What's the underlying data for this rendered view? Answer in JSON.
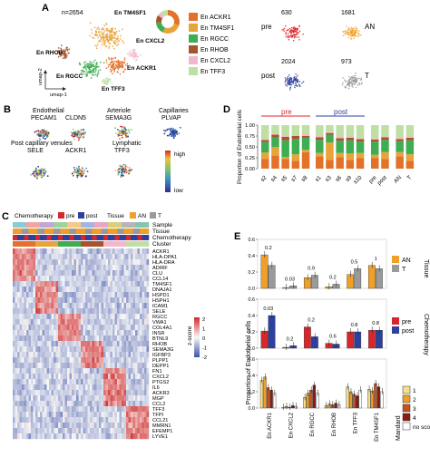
{
  "panels": {
    "A": {
      "letter": "A",
      "n_label": "n=2654",
      "clusters": [
        {
          "label": "En TM4SF1",
          "color": "#e8a33a"
        },
        {
          "label": "En RHOB",
          "color": "#a6542a"
        },
        {
          "label": "En CXCL2",
          "color": "#f4b6cc"
        },
        {
          "label": "En ACKR1",
          "color": "#e2722a"
        },
        {
          "label": "En RGCC",
          "color": "#3fae53"
        },
        {
          "label": "En TFF3",
          "color": "#bfe0a4"
        }
      ],
      "legend": [
        {
          "label": "En ACKR1",
          "color": "#e2722a"
        },
        {
          "label": "En TM4SF1",
          "color": "#e8a33a"
        },
        {
          "label": "En RGCC",
          "color": "#3fae53"
        },
        {
          "label": "En RHOB",
          "color": "#a6542a"
        },
        {
          "label": "En CXCL2",
          "color": "#f4b6cc"
        },
        {
          "label": "En TFF3",
          "color": "#bfe0a4"
        }
      ],
      "axis_x": "umap-1",
      "axis_y": "umap-2",
      "mini_umaps": [
        {
          "group": "pre",
          "count": "630",
          "color": "#d9262b"
        },
        {
          "group": "AN",
          "count": "1681",
          "color": "#f0a028"
        },
        {
          "group": "post",
          "count": "2024",
          "color": "#2e3f9e"
        },
        {
          "group": "T",
          "count": "973",
          "color": "#9a9a9a"
        }
      ]
    },
    "B": {
      "letter": "B",
      "headers": [
        "Endothelial",
        "Arteriole",
        "Capillaries",
        "Post capillary venules",
        "Lymphatic"
      ],
      "genes": [
        "PECAM1",
        "CLDN5",
        "SEMA3G",
        "PLVAP",
        "SELE",
        "ACKR1",
        "TFF3"
      ],
      "color_high": "high",
      "color_low": "low"
    },
    "C": {
      "letter": "C",
      "legend_chemo_title": "Chemotherapy",
      "legend_pre": "pre",
      "legend_post": "post",
      "legend_tissue_title": "Tissue",
      "legend_an": "AN",
      "legend_t": "T",
      "annotation_rows": [
        "Sample",
        "Tissue",
        "Chemotherapy",
        "Cluster"
      ],
      "genes": [
        "ACKR1",
        "HLA-DPA1",
        "HLA-DRA",
        "ADIRF",
        "CLU",
        "CCL14",
        "TM4SF1",
        "DNAJA1",
        "HSPD1",
        "HSPH1",
        "ICAM1",
        "SELE",
        "RGCC",
        "VWA1",
        "COL4A1",
        "INSR",
        "BTNL9",
        "RHOB",
        "SEMA3G",
        "IGFBP3",
        "PLPP1",
        "DEPP1",
        "FN1",
        "CXCL2",
        "PTGS2",
        "IL6",
        "ACKR3",
        "MGP",
        "CCL2",
        "TFF3",
        "TFPI",
        "CCL21",
        "MMRN1",
        "EFEMP1",
        "LYVE1"
      ],
      "scale_label": "z-score",
      "scale_ticks": [
        "2",
        "1",
        "0",
        "-1",
        "-2"
      ]
    },
    "D": {
      "letter": "D",
      "ylabel": "Proportion of Endothelial cells",
      "group_pre": "pre",
      "group_post": "post",
      "yticks": [
        "0.00",
        "0.25",
        "0.50",
        "0.75",
        "1.00"
      ]
    },
    "E": {
      "letter": "E",
      "ylabel": "Proportion of Endothelial cells",
      "tissue_legend": [
        {
          "label": "AN",
          "color": "#f0a028"
        },
        {
          "label": "T",
          "color": "#9a9a9a"
        }
      ],
      "tissue_title": "Tissue",
      "chemo_legend": [
        {
          "label": "pre",
          "color": "#d9262b"
        },
        {
          "label": "post",
          "color": "#2e3f9e"
        }
      ],
      "chemo_title": "Chemotherapy",
      "mandard_title": "Mandard",
      "mandard_legend": [
        {
          "label": "1",
          "color": "#f6e08a"
        },
        {
          "label": "2",
          "color": "#f0a028"
        },
        {
          "label": "3",
          "color": "#c8531c"
        },
        {
          "label": "4",
          "color": "#8a1a14"
        },
        {
          "label": "no score",
          "color": "#ffffff"
        }
      ],
      "yticks_top": [
        "0.0",
        "0.2",
        "0.4",
        "0.6"
      ],
      "yticks_mid": [
        "0.0",
        "0.2",
        "0.4",
        "0.6"
      ],
      "yticks_bot": [
        "0.0",
        "0.2",
        "0.4",
        "0.6"
      ]
    }
  },
  "chart_data": [
    {
      "type": "bar",
      "panel": "D",
      "stacked": true,
      "categories": [
        "s2",
        "s4",
        "s5",
        "s7",
        "s8",
        "s1",
        "s3",
        "s6",
        "s9",
        "s10",
        "pre",
        "post",
        "AN",
        "T"
      ],
      "series": [
        {
          "name": "En ACKR1",
          "values": [
            0.22,
            0.3,
            0.22,
            0.18,
            0.38,
            0.28,
            0.2,
            0.26,
            0.2,
            0.24,
            0.24,
            0.22,
            0.28,
            0.18
          ]
        },
        {
          "name": "En TM4SF1",
          "values": [
            0.15,
            0.2,
            0.05,
            0.15,
            0.05,
            0.08,
            0.4,
            0.1,
            0.15,
            0.12,
            0.08,
            0.16,
            0.1,
            0.15
          ]
        },
        {
          "name": "En RGCC",
          "values": [
            0.24,
            0.22,
            0.38,
            0.35,
            0.28,
            0.3,
            0.18,
            0.28,
            0.3,
            0.26,
            0.3,
            0.28,
            0.25,
            0.32
          ]
        },
        {
          "name": "En RHOB",
          "values": [
            0.05,
            0.06,
            0.08,
            0.07,
            0.04,
            0.06,
            0.04,
            0.06,
            0.06,
            0.06,
            0.05,
            0.06,
            0.05,
            0.06
          ]
        },
        {
          "name": "En CXCL2",
          "values": [
            0.02,
            0.02,
            0.04,
            0.02,
            0.05,
            0.03,
            0.02,
            0.04,
            0.03,
            0.02,
            0.03,
            0.02,
            0.04,
            0.03
          ]
        },
        {
          "name": "En TFF3",
          "values": [
            0.32,
            0.2,
            0.23,
            0.23,
            0.2,
            0.25,
            0.16,
            0.26,
            0.26,
            0.3,
            0.3,
            0.26,
            0.28,
            0.26
          ]
        }
      ],
      "ylim": [
        0,
        1
      ]
    },
    {
      "type": "bar",
      "panel": "E-tissue",
      "categories": [
        "En ACKR1",
        "En CXCL2",
        "En RGCC",
        "En RHOB",
        "En TFF3",
        "En TM4SF1"
      ],
      "series": [
        {
          "name": "AN",
          "values": [
            0.41,
            0.01,
            0.13,
            0.02,
            0.17,
            0.28
          ]
        },
        {
          "name": "T",
          "values": [
            0.28,
            0.03,
            0.16,
            0.05,
            0.24,
            0.24
          ]
        }
      ],
      "pvalues": [
        "0.2",
        "0.03",
        "0.9",
        "0.2",
        "0.5",
        "1"
      ],
      "ylim": [
        0,
        0.6
      ]
    },
    {
      "type": "bar",
      "panel": "E-chemotherapy",
      "categories": [
        "En ACKR1",
        "En CXCL2",
        "En RGCC",
        "En RHOB",
        "En TFF3",
        "En TM4SF1"
      ],
      "series": [
        {
          "name": "pre",
          "values": [
            0.21,
            0.01,
            0.26,
            0.06,
            0.2,
            0.22
          ]
        },
        {
          "name": "post",
          "values": [
            0.4,
            0.03,
            0.14,
            0.05,
            0.2,
            0.22
          ]
        }
      ],
      "pvalues": [
        "0.03",
        "0.2",
        "0.2",
        "0.6",
        "0.8",
        "0.8"
      ],
      "ylim": [
        0,
        0.6
      ]
    },
    {
      "type": "bar",
      "panel": "E-mandard",
      "categories": [
        "En ACKR1",
        "En CXCL2",
        "En RGCC",
        "En RHOB",
        "En TFF3",
        "En TM4SF1"
      ],
      "series": [
        {
          "name": "1",
          "values": [
            0.34,
            0.01,
            0.13,
            0.03,
            0.26,
            0.23
          ]
        },
        {
          "name": "2",
          "values": [
            0.38,
            0.02,
            0.18,
            0.05,
            0.2,
            0.21
          ]
        },
        {
          "name": "3",
          "values": [
            0.25,
            0.01,
            0.22,
            0.04,
            0.17,
            0.3
          ]
        },
        {
          "name": "4",
          "values": [
            0.22,
            0.03,
            0.28,
            0.06,
            0.15,
            0.26
          ]
        },
        {
          "name": "no score",
          "values": [
            0.18,
            0.02,
            0.18,
            0.04,
            0.22,
            0.2
          ]
        }
      ],
      "ylim": [
        0,
        0.6
      ]
    }
  ]
}
